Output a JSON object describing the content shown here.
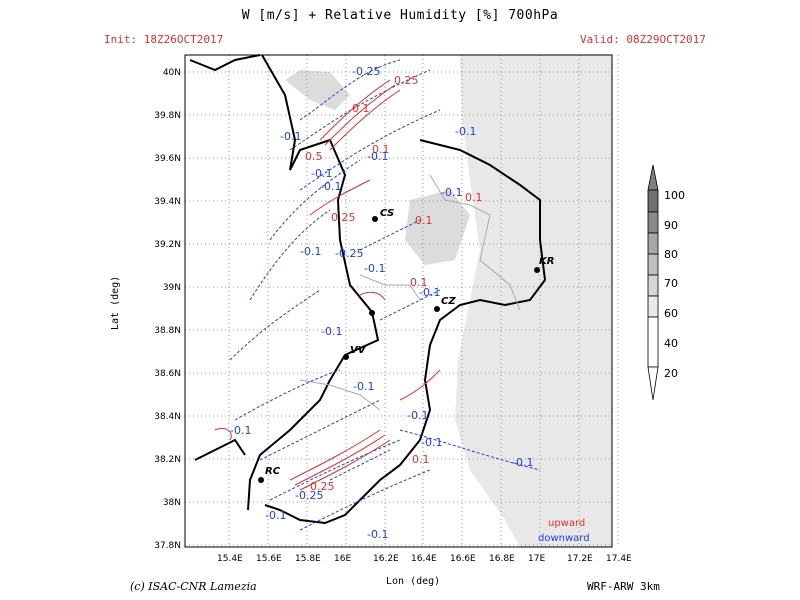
{
  "header": {
    "title": "W [m/s] + Relative Humidity [%] 700hPa",
    "init": "Init: 18Z26OCT2017",
    "valid": "Valid: 08Z29OCT2017"
  },
  "axes": {
    "x_title": "Lon (deg)",
    "y_title": "Lat (deg)",
    "x_ticks": [
      "15.4E",
      "15.6E",
      "15.8E",
      "16E",
      "16.2E",
      "16.4E",
      "16.6E",
      "16.8E",
      "17E",
      "17.2E",
      "17.4E"
    ],
    "y_ticks": [
      "40N",
      "39.8N",
      "39.6N",
      "39.4N",
      "39.2N",
      "39N",
      "38.8N",
      "38.6N",
      "38.4N",
      "38.2N",
      "38N",
      "37.8N"
    ]
  },
  "cities": [
    {
      "name": "CS"
    },
    {
      "name": "KR"
    },
    {
      "name": "CZ"
    },
    {
      "name": "VV"
    },
    {
      "name": "RC"
    }
  ],
  "contour_labels": {
    "red": [
      "0.25",
      "0.1",
      "0.5",
      "0.1",
      "0.25",
      "0.1",
      "0.1",
      "0.1",
      "0.1",
      "0.25"
    ],
    "blue": [
      "-0.25",
      "-0.1",
      "-0.1",
      "-0.1",
      "-0.1",
      "-0.1",
      "-0.25",
      "-0.1",
      "-0.1",
      "-0.1",
      "-0.1",
      "-0.1",
      "-0.1",
      "-0.1",
      "-0.1",
      "-0.1",
      "-0.1",
      "-0.25",
      "-0.1",
      "-0.1"
    ]
  },
  "legend": {
    "upward": "upward",
    "downward": "downward",
    "colorbar_levels": [
      "100",
      "90",
      "80",
      "70",
      "60",
      "40",
      "20"
    ]
  },
  "footer": {
    "credit": "(c) ISAC-CNR Lamezia",
    "model": "WRF-ARW 3km"
  },
  "colors": {
    "upward": "#e03030",
    "downward": "#2040e0",
    "land_shade": "#e8e8e8",
    "grid": "#9a9a9a"
  }
}
